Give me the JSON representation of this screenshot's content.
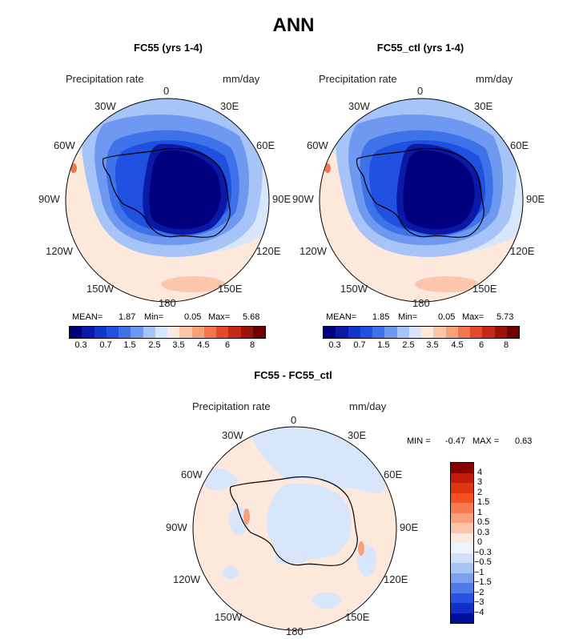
{
  "title": "ANN",
  "panels": [
    {
      "title": "FC55 (yrs 1-4)",
      "variable": "Precipitation rate",
      "units": "mm/day",
      "mean_label": "MEAN=",
      "mean": "1.87",
      "min_label": "Min=",
      "min": "0.05",
      "max_label": "Max=",
      "max": "5.68",
      "lon_labels": [
        "0",
        "30E",
        "60E",
        "90E",
        "120E",
        "150E",
        "180",
        "150W",
        "120W",
        "90W",
        "60W",
        "30W"
      ]
    },
    {
      "title": "FC55_ctl (yrs 1-4)",
      "variable": "Precipitation rate",
      "units": "mm/day",
      "mean_label": "MEAN=",
      "mean": "1.85",
      "min_label": "Min=",
      "min": "0.05",
      "max_label": "Max=",
      "max": "5.73",
      "lon_labels": [
        "0",
        "30E",
        "60E",
        "90E",
        "120E",
        "150E",
        "180",
        "150W",
        "120W",
        "90W",
        "60W",
        "30W"
      ]
    }
  ],
  "diff": {
    "title": "FC55 - FC55_ctl",
    "variable": "Precipitation rate",
    "units": "mm/day",
    "min_label": "MIN =",
    "min": "-0.47",
    "max_label": "MAX =",
    "max": "0.63",
    "lon_labels": [
      "0",
      "30E",
      "60E",
      "90E",
      "120E",
      "150E",
      "180",
      "150W",
      "120W",
      "90W",
      "60W",
      "30W"
    ]
  },
  "colorbar_main": {
    "colors": [
      "#00007f",
      "#0a1aa6",
      "#1236cc",
      "#2050e0",
      "#3e72e8",
      "#6f98f0",
      "#a6c4f8",
      "#d8e6fb",
      "#fde8dc",
      "#fbc6ac",
      "#f8a07a",
      "#f2764e",
      "#e24a2a",
      "#c52a18",
      "#9b1208",
      "#6e0000"
    ],
    "tick_labels": [
      "0.3",
      "0.7",
      "1.5",
      "2.5",
      "3.5",
      "4.5",
      "6",
      "8"
    ]
  },
  "colorbar_diff": {
    "colors": [
      "#8a0000",
      "#c21c0c",
      "#e0360f",
      "#f55022",
      "#f87a50",
      "#f9a07c",
      "#fcc4a8",
      "#feeadc",
      "#eef4fc",
      "#cfe0f8",
      "#a8c4f4",
      "#7aa0ee",
      "#4f7ae8",
      "#2a52e0",
      "#1030c8",
      "#000f9a"
    ],
    "tick_labels": [
      "4",
      "3",
      "2",
      "1.5",
      "1",
      "0.5",
      "0.3",
      "0",
      "−0.3",
      "−0.5",
      "−1",
      "−1.5",
      "−2",
      "−3",
      "−4"
    ]
  }
}
